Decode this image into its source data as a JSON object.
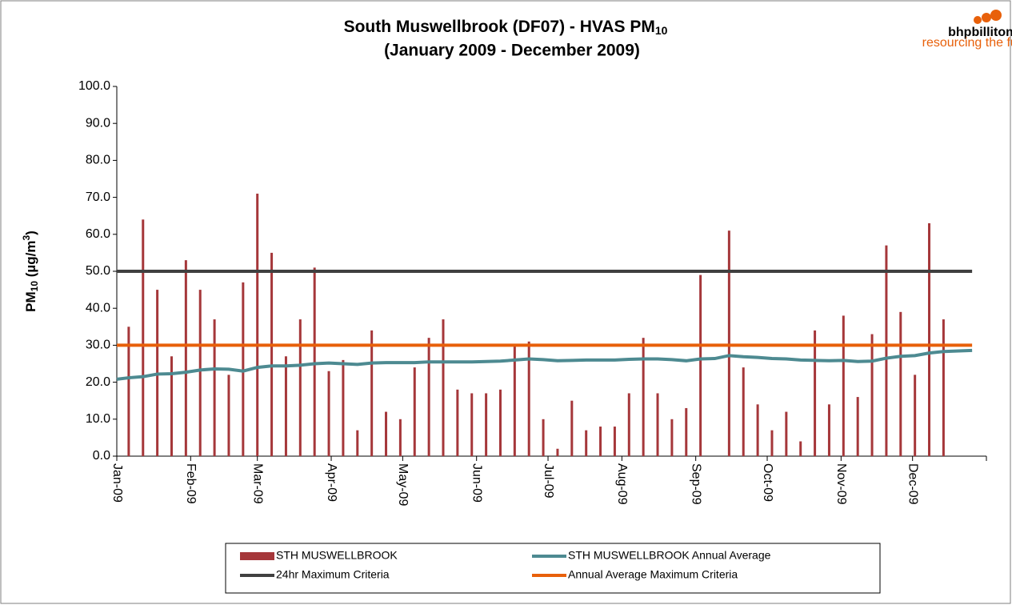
{
  "chart_data": {
    "type": "bar",
    "title": {
      "text": "South Muswellbrook (DF07) - HVAS PM",
      "sub": "10"
    },
    "subtitle": "(January 2009 - December 2009)",
    "ylabel": [
      "PM",
      "10",
      " (µg/m",
      "3",
      ")"
    ],
    "logo": {
      "name": "bhpbilliton",
      "tagline": "resourcing the future"
    },
    "xlim": [
      0,
      365
    ],
    "xticks": [
      {
        "value": 0,
        "label": "Jan-09"
      },
      {
        "value": 31,
        "label": "Feb-09"
      },
      {
        "value": 59,
        "label": "Mar-09"
      },
      {
        "value": 90,
        "label": "Apr-09"
      },
      {
        "value": 120,
        "label": "May-09"
      },
      {
        "value": 151,
        "label": "Jun-09"
      },
      {
        "value": 181,
        "label": "Jul-09"
      },
      {
        "value": 212,
        "label": "Aug-09"
      },
      {
        "value": 243,
        "label": "Sep-09"
      },
      {
        "value": 273,
        "label": "Oct-09"
      },
      {
        "value": 304,
        "label": "Nov-09"
      },
      {
        "value": 334,
        "label": "Dec-09"
      }
    ],
    "ylim": [
      0,
      100
    ],
    "yticks": [
      {
        "value": 0,
        "label": "0.0"
      },
      {
        "value": 10,
        "label": "10.0"
      },
      {
        "value": 20,
        "label": "20.0"
      },
      {
        "value": 30,
        "label": "30.0"
      },
      {
        "value": 40,
        "label": "40.0"
      },
      {
        "value": 50,
        "label": "50.0"
      },
      {
        "value": 60,
        "label": "60.0"
      },
      {
        "value": 70,
        "label": "70.0"
      },
      {
        "value": 80,
        "label": "80.0"
      },
      {
        "value": 90,
        "label": "90.0"
      },
      {
        "value": 100,
        "label": "100.0"
      }
    ],
    "series": [
      {
        "name": "STH MUSWELLBROOK",
        "type": "bar",
        "color": "#a5373a",
        "x": [
          5,
          11,
          17,
          23,
          29,
          35,
          41,
          47,
          53,
          59,
          65,
          71,
          77,
          83,
          89,
          95,
          101,
          107,
          113,
          119,
          125,
          131,
          137,
          143,
          149,
          155,
          161,
          167,
          173,
          179,
          185,
          191,
          197,
          203,
          209,
          215,
          221,
          227,
          233,
          239,
          245,
          251,
          257,
          263,
          269,
          275,
          281,
          287,
          293,
          299,
          305,
          311,
          317,
          323,
          329,
          335,
          341,
          347
        ],
        "values": [
          35,
          64,
          45,
          27,
          53,
          45,
          37,
          22,
          47,
          71,
          55,
          27,
          37,
          51,
          23,
          26,
          7,
          34,
          12,
          10,
          24,
          32,
          37,
          18,
          17,
          17,
          18,
          30,
          31,
          10,
          2,
          15,
          7,
          8,
          8,
          17,
          32,
          17,
          10,
          13,
          49,
          null,
          61,
          24,
          14,
          7,
          12,
          4,
          34,
          14,
          38,
          16,
          33,
          57,
          39,
          22,
          63,
          37
        ]
      },
      {
        "name": "24hr Maximum Criteria",
        "type": "line",
        "color": "#404040",
        "x": [
          0,
          359
        ],
        "values": [
          50,
          50
        ]
      },
      {
        "name": "STH MUSWELLBROOK Annual Average",
        "type": "line",
        "color": "#4d8a91",
        "x": [
          0,
          5,
          11,
          17,
          23,
          29,
          35,
          41,
          47,
          53,
          59,
          65,
          71,
          77,
          83,
          89,
          95,
          101,
          107,
          113,
          119,
          125,
          131,
          137,
          143,
          149,
          155,
          161,
          167,
          173,
          179,
          185,
          191,
          197,
          203,
          209,
          215,
          221,
          227,
          233,
          239,
          245,
          251,
          257,
          263,
          269,
          275,
          281,
          287,
          293,
          299,
          305,
          311,
          317,
          323,
          329,
          335,
          341,
          347,
          359
        ],
        "values": [
          20.8,
          21.2,
          21.5,
          22.2,
          22.3,
          22.7,
          23.3,
          23.6,
          23.5,
          23.0,
          24.0,
          24.4,
          24.4,
          24.6,
          25.0,
          25.2,
          25.0,
          24.8,
          25.2,
          25.3,
          25.3,
          25.3,
          25.5,
          25.5,
          25.5,
          25.5,
          25.6,
          25.7,
          26.0,
          26.3,
          26.1,
          25.8,
          25.9,
          26.0,
          26.0,
          26.0,
          26.2,
          26.3,
          26.3,
          26.1,
          25.8,
          26.3,
          26.4,
          27.2,
          26.9,
          26.7,
          26.4,
          26.3,
          26.0,
          25.9,
          25.8,
          25.9,
          25.6,
          25.7,
          26.5,
          27.0,
          27.2,
          27.9,
          28.3,
          28.6
        ]
      },
      {
        "name": "Annual Average Maximum Criteria",
        "type": "line",
        "color": "#e8600a",
        "x": [
          0,
          359
        ],
        "values": [
          30,
          30
        ]
      }
    ]
  }
}
